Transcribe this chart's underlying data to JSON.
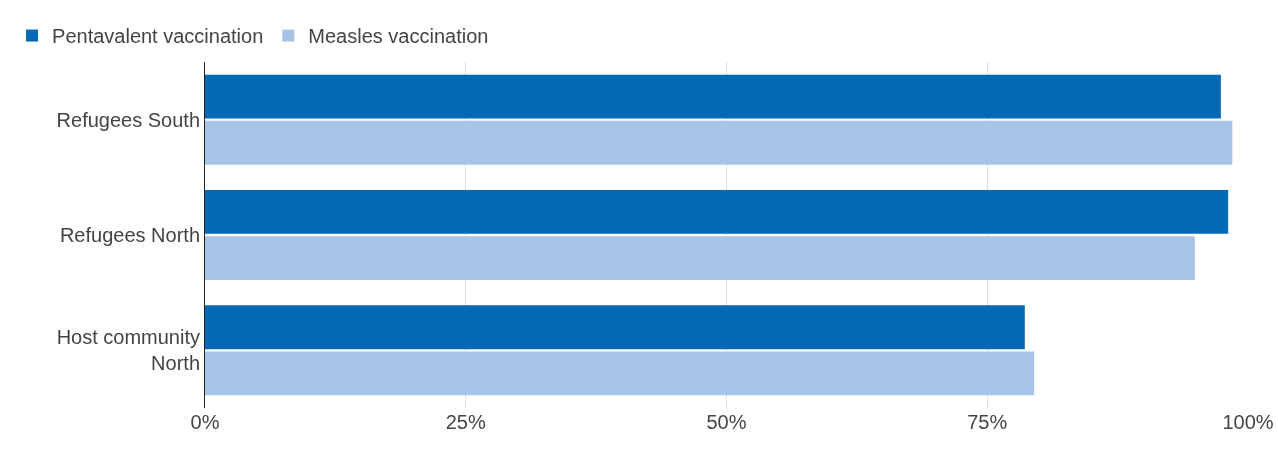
{
  "chart_data": {
    "type": "bar",
    "orientation": "horizontal",
    "categories": [
      "Refugees South",
      "Refugees North",
      "Host community North"
    ],
    "series": [
      {
        "name": "Pentavalent vaccination",
        "color": "#0369b5",
        "values": [
          97.4,
          98.1,
          78.6
        ]
      },
      {
        "name": "Measles vaccination",
        "color": "#a7c4e8",
        "values": [
          98.5,
          94.9,
          79.5
        ]
      }
    ],
    "xlim": [
      0,
      100
    ],
    "xticks": [
      {
        "value": 0,
        "label": "0%"
      },
      {
        "value": 25,
        "label": "25%"
      },
      {
        "value": 50,
        "label": "50%"
      },
      {
        "value": 75,
        "label": "75%"
      },
      {
        "value": 100,
        "label": "100%"
      }
    ],
    "grid": "x",
    "legend": "top left"
  }
}
